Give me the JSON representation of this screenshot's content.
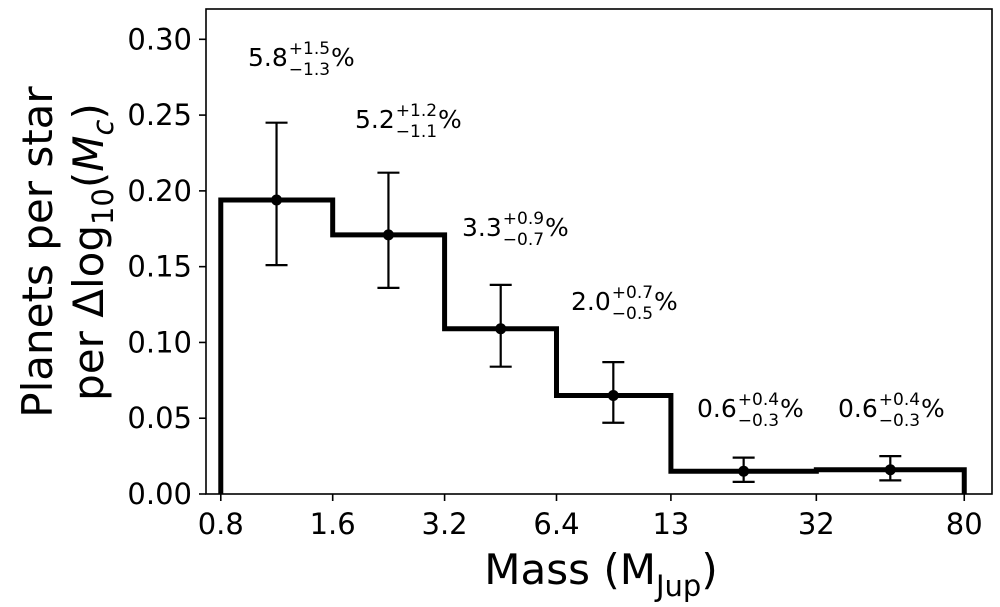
{
  "chart_data": {
    "type": "bar",
    "style": "step-histogram-with-errorbars",
    "xscale": "log",
    "xlabel": "Mass (M",
    "xlabel_sub": "Jup",
    "xlabel_close": ")",
    "ylabel_line1": "Planets per star",
    "ylabel_line2_prefix": "per Δlog",
    "ylabel_line2_sub": "10",
    "ylabel_line2_open": "(",
    "ylabel_line2_var": "M",
    "ylabel_line2_var_sub": "c",
    "ylabel_line2_close": ")",
    "xlim": [
      0.73,
      95
    ],
    "ylim": [
      0,
      0.32
    ],
    "xticks": [
      0.8,
      1.6,
      3.2,
      6.4,
      13,
      32,
      80
    ],
    "xtick_labels": [
      "0.8",
      "1.6",
      "3.2",
      "6.4",
      "13",
      "32",
      "80"
    ],
    "yticks": [
      0,
      0.05,
      0.1,
      0.15,
      0.2,
      0.25,
      0.3
    ],
    "ytick_labels": [
      "0.00",
      "0.05",
      "0.10",
      "0.15",
      "0.20",
      "0.25",
      "0.30"
    ],
    "grid": false,
    "bins": [
      {
        "x0": 0.8,
        "x1": 1.6,
        "center": 1.13,
        "value": 0.194,
        "err_low": 0.151,
        "err_high": 0.245,
        "label": {
          "base": "5.8",
          "plus": "+1.5",
          "minus": "−1.3",
          "suffix": "%"
        }
      },
      {
        "x0": 1.6,
        "x1": 3.2,
        "center": 2.26,
        "value": 0.171,
        "err_low": 0.136,
        "err_high": 0.212,
        "label": {
          "base": "5.2",
          "plus": "+1.2",
          "minus": "−1.1",
          "suffix": "%"
        }
      },
      {
        "x0": 3.2,
        "x1": 6.4,
        "center": 4.53,
        "value": 0.109,
        "err_low": 0.084,
        "err_high": 0.138,
        "label": {
          "base": "3.3",
          "plus": "+0.9",
          "minus": "−0.7",
          "suffix": "%"
        }
      },
      {
        "x0": 6.4,
        "x1": 13,
        "center": 9.1,
        "value": 0.065,
        "err_low": 0.047,
        "err_high": 0.087,
        "label": {
          "base": "2.0",
          "plus": "+0.7",
          "minus": "−0.5",
          "suffix": "%"
        }
      },
      {
        "x0": 13,
        "x1": 32,
        "center": 20.4,
        "value": 0.015,
        "err_low": 0.008,
        "err_high": 0.024,
        "label": {
          "base": "0.6",
          "plus": "+0.4",
          "minus": "−0.3",
          "suffix": "%"
        }
      },
      {
        "x0": 32,
        "x1": 80,
        "center": 50.6,
        "value": 0.016,
        "err_low": 0.009,
        "err_high": 0.025,
        "label": {
          "base": "0.6",
          "plus": "+0.4",
          "minus": "−0.3",
          "suffix": "%"
        }
      }
    ],
    "colors": {
      "line": "#000000",
      "background": "#ffffff"
    }
  }
}
